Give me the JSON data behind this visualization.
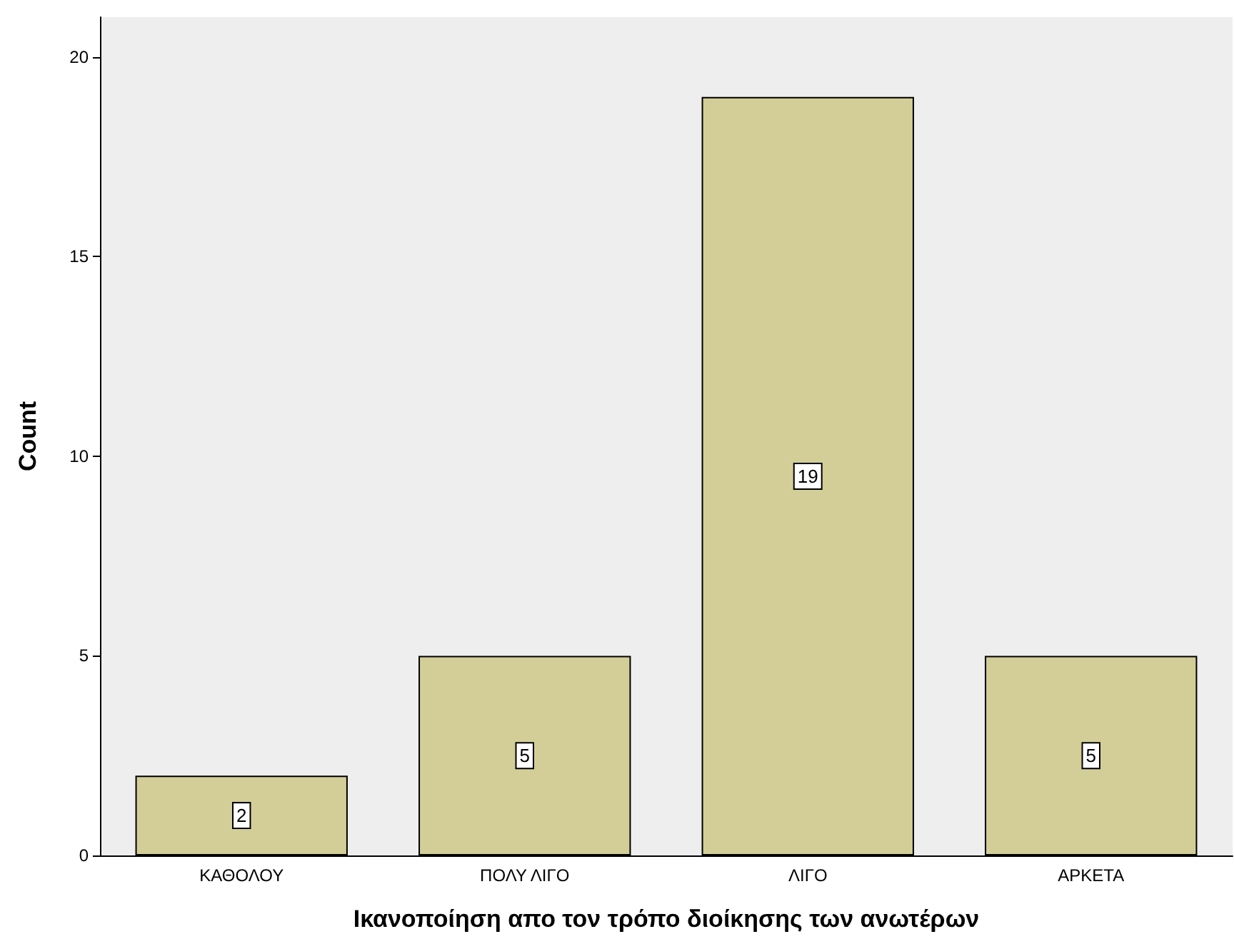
{
  "chart_data": {
    "type": "bar",
    "categories": [
      "ΚΑΘΟΛΟΥ",
      "ΠΟΛΥ ΛΙΓΟ",
      "ΛΙΓΟ",
      "ΑΡΚΕΤΑ"
    ],
    "values": [
      2,
      5,
      19,
      5
    ],
    "color": "#d3ce97",
    "xlabel": "Ικανοποίηση απο τον τρόπο διοίκησης των ανωτέρων",
    "ylabel": "Count",
    "ylim": [
      0,
      21
    ],
    "yticks": [
      0,
      5,
      10,
      15,
      20
    ],
    "grid": false,
    "data_labels": true
  }
}
